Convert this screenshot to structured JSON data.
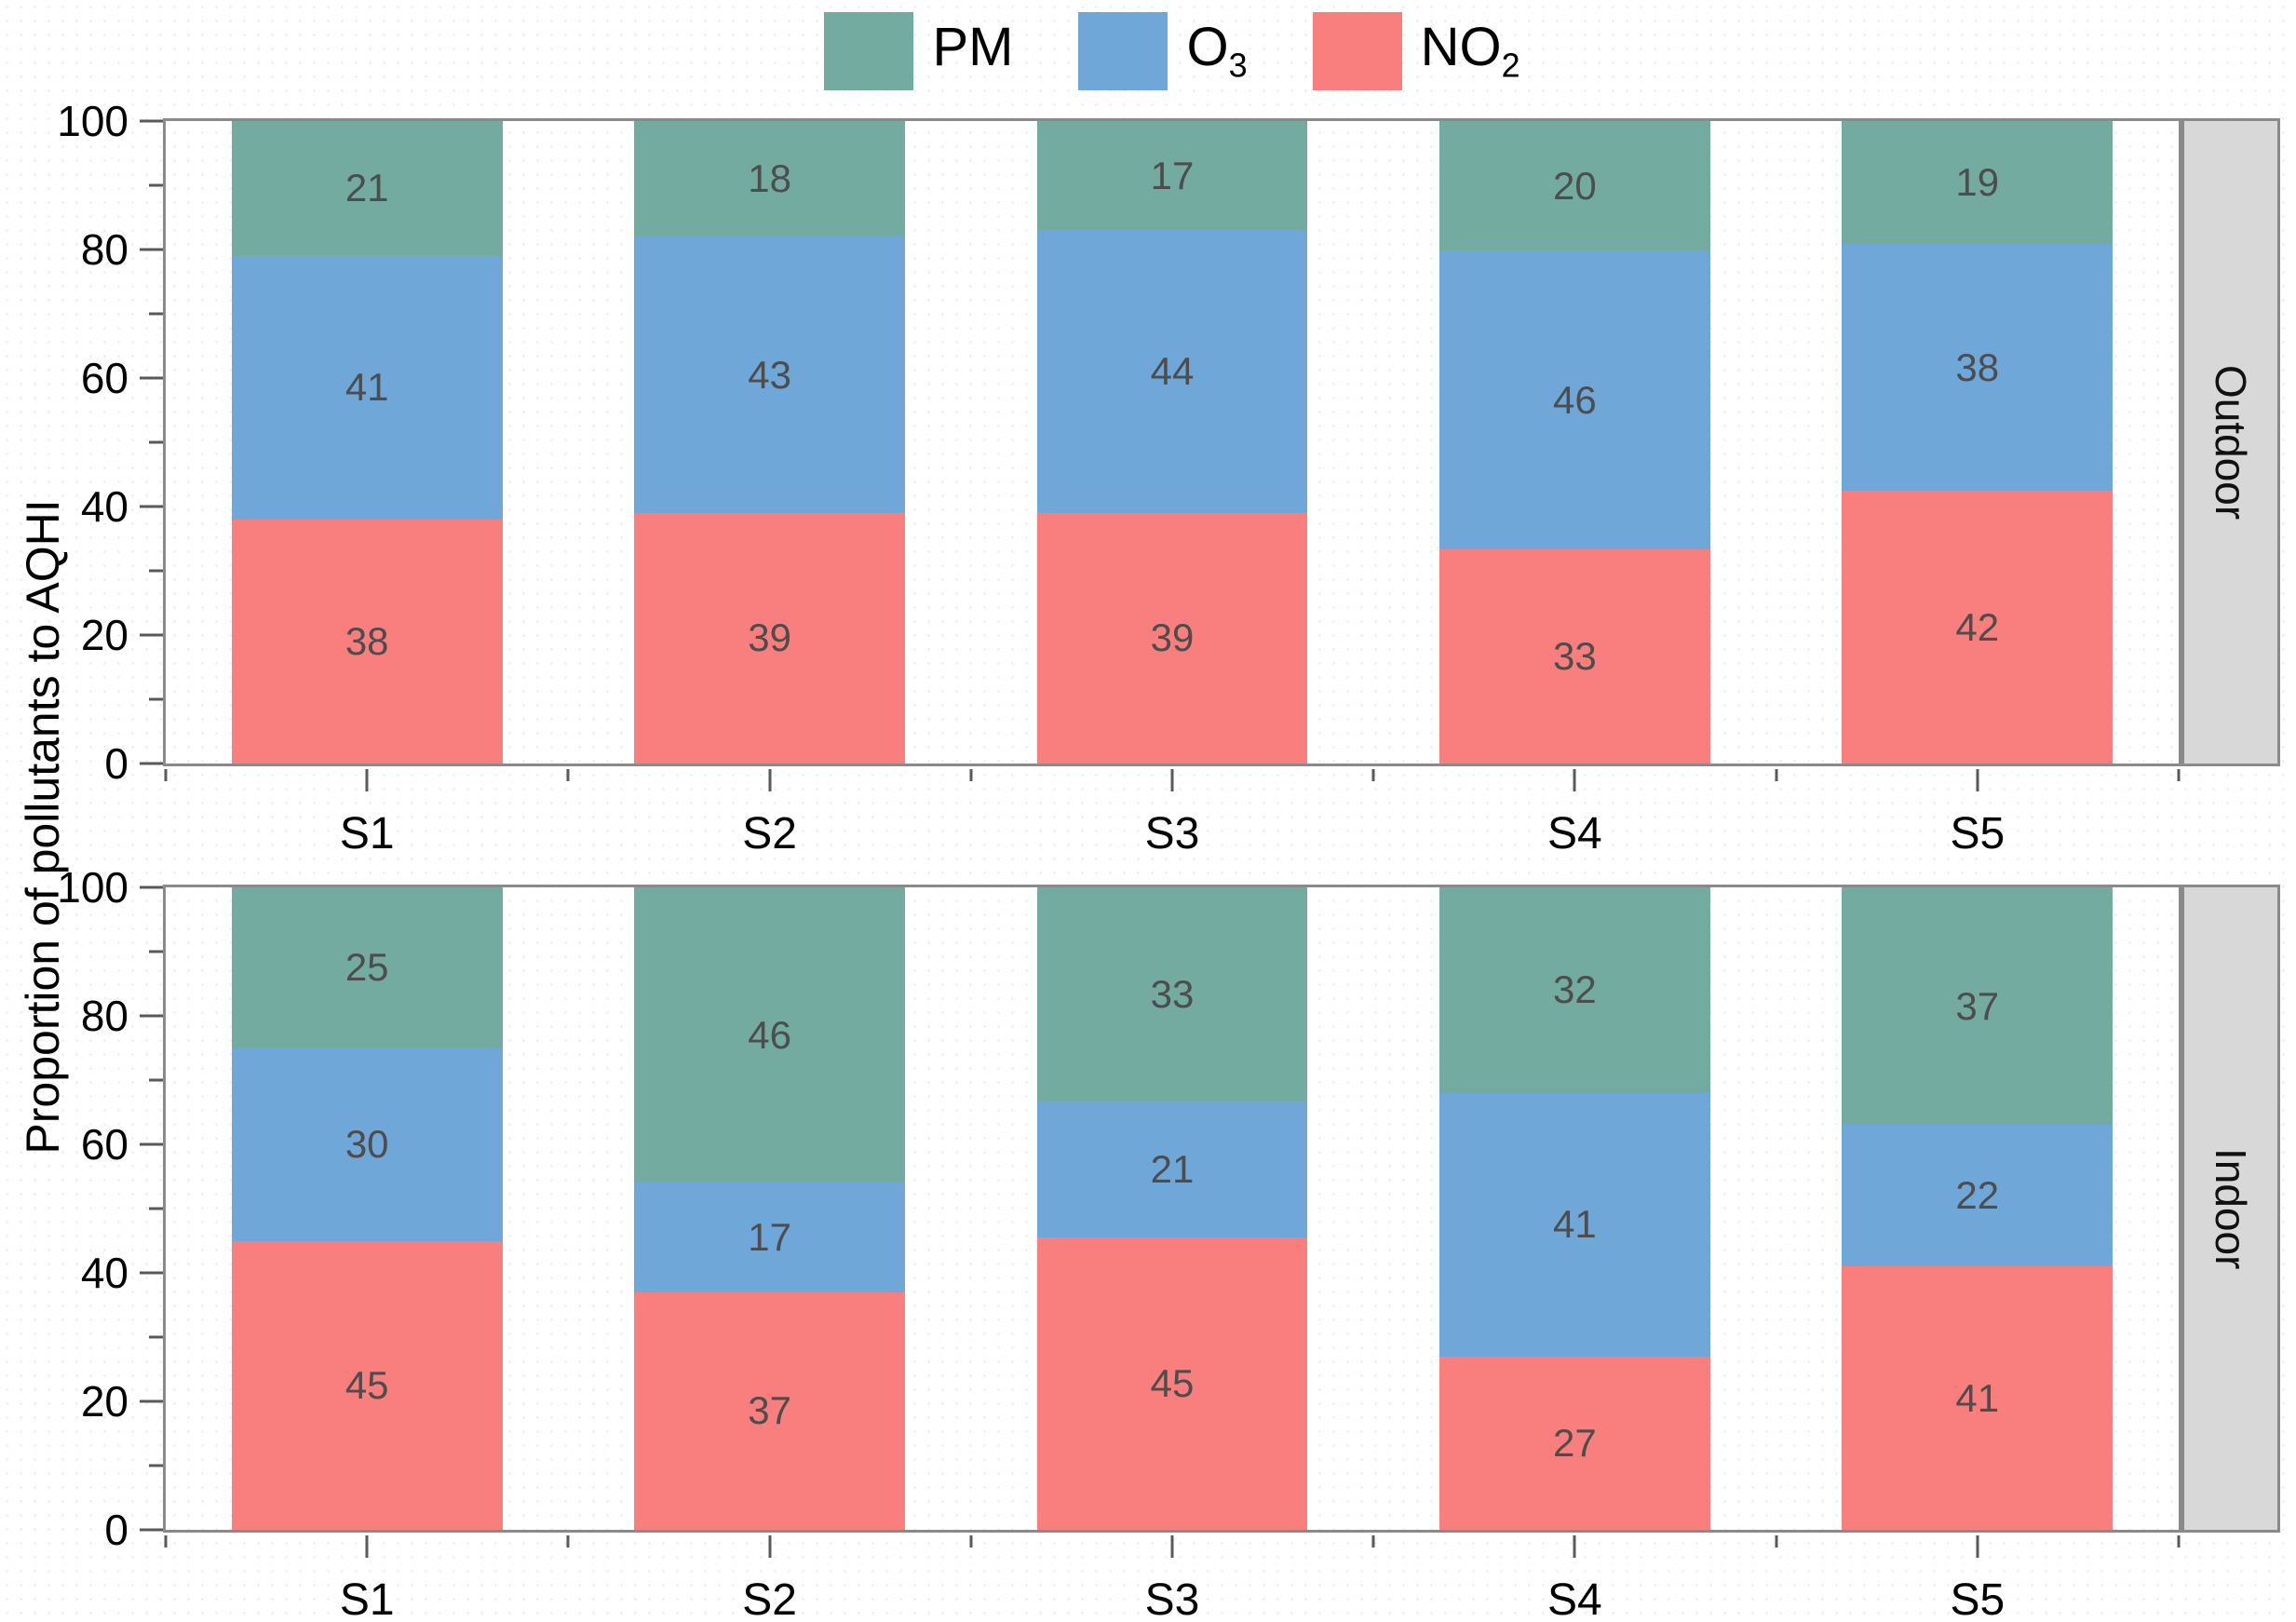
{
  "figure": {
    "y_axis_title": "Proportion of pollutants to AQHI",
    "colors": {
      "pm": "#74ABA0",
      "o3": "#6FA7D9",
      "no2": "#F97F7E",
      "frame": "#8A8A8A",
      "strip_bg": "#D8D8D8",
      "value_label": "#4D4D4D"
    }
  },
  "legend": {
    "items": [
      {
        "label": "PM",
        "sub": "",
        "color": "#74ABA0"
      },
      {
        "label": "O",
        "sub": "3",
        "color": "#6FA7D9"
      },
      {
        "label": "NO",
        "sub": "2",
        "color": "#F97F7E"
      }
    ]
  },
  "chart_data": {
    "type": "bar",
    "stacked": true,
    "title": "",
    "xlabel": "",
    "ylabel": "Proportion of pollutants to AQHI",
    "ylim": [
      0,
      100
    ],
    "yticks": [
      0,
      20,
      40,
      60,
      80,
      100
    ],
    "grid": false,
    "legend_position": "top-center",
    "categories": [
      "S1",
      "S2",
      "S3",
      "S4",
      "S5"
    ],
    "panels": [
      {
        "facet": "Outdoor",
        "series": [
          {
            "name": "NO2",
            "color": "#F97F7E",
            "values": [
              38,
              39,
              39,
              33,
              42
            ]
          },
          {
            "name": "O3",
            "color": "#6FA7D9",
            "values": [
              41,
              43,
              44,
              46,
              38
            ]
          },
          {
            "name": "PM",
            "color": "#74ABA0",
            "values": [
              21,
              18,
              17,
              20,
              19
            ]
          }
        ]
      },
      {
        "facet": "Indoor",
        "series": [
          {
            "name": "NO2",
            "color": "#F97F7E",
            "values": [
              45,
              37,
              45,
              27,
              41
            ]
          },
          {
            "name": "O3",
            "color": "#6FA7D9",
            "values": [
              30,
              17,
              21,
              41,
              22
            ]
          },
          {
            "name": "PM",
            "color": "#74ABA0",
            "values": [
              25,
              46,
              33,
              32,
              37
            ]
          }
        ]
      }
    ]
  }
}
